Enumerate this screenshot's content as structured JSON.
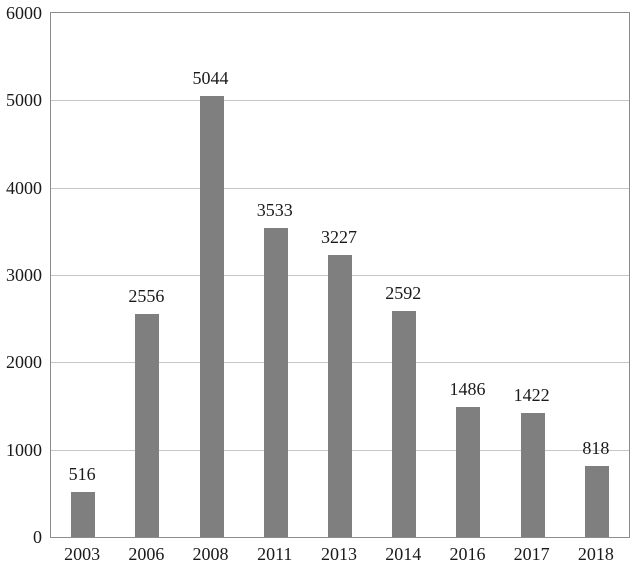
{
  "chart_data": {
    "type": "bar",
    "categories": [
      "2003",
      "2006",
      "2008",
      "2011",
      "2013",
      "2014",
      "2016",
      "2017",
      "2018"
    ],
    "values": [
      516,
      2556,
      5044,
      3533,
      3227,
      2592,
      1486,
      1422,
      818
    ],
    "title": "",
    "xlabel": "",
    "ylabel": "",
    "ylim": [
      0,
      6000
    ],
    "ytick_step": 1000,
    "ytick_labels": [
      "0",
      "1000",
      "2000",
      "3000",
      "4000",
      "5000",
      "6000"
    ],
    "grid": true,
    "legend": "none",
    "colors": {
      "bar": "#7f7f7f",
      "gridline": "#c6c6c6",
      "axis_border": "#8c8c8c",
      "text": "#1a1a1a",
      "background": "#ffffff"
    }
  }
}
